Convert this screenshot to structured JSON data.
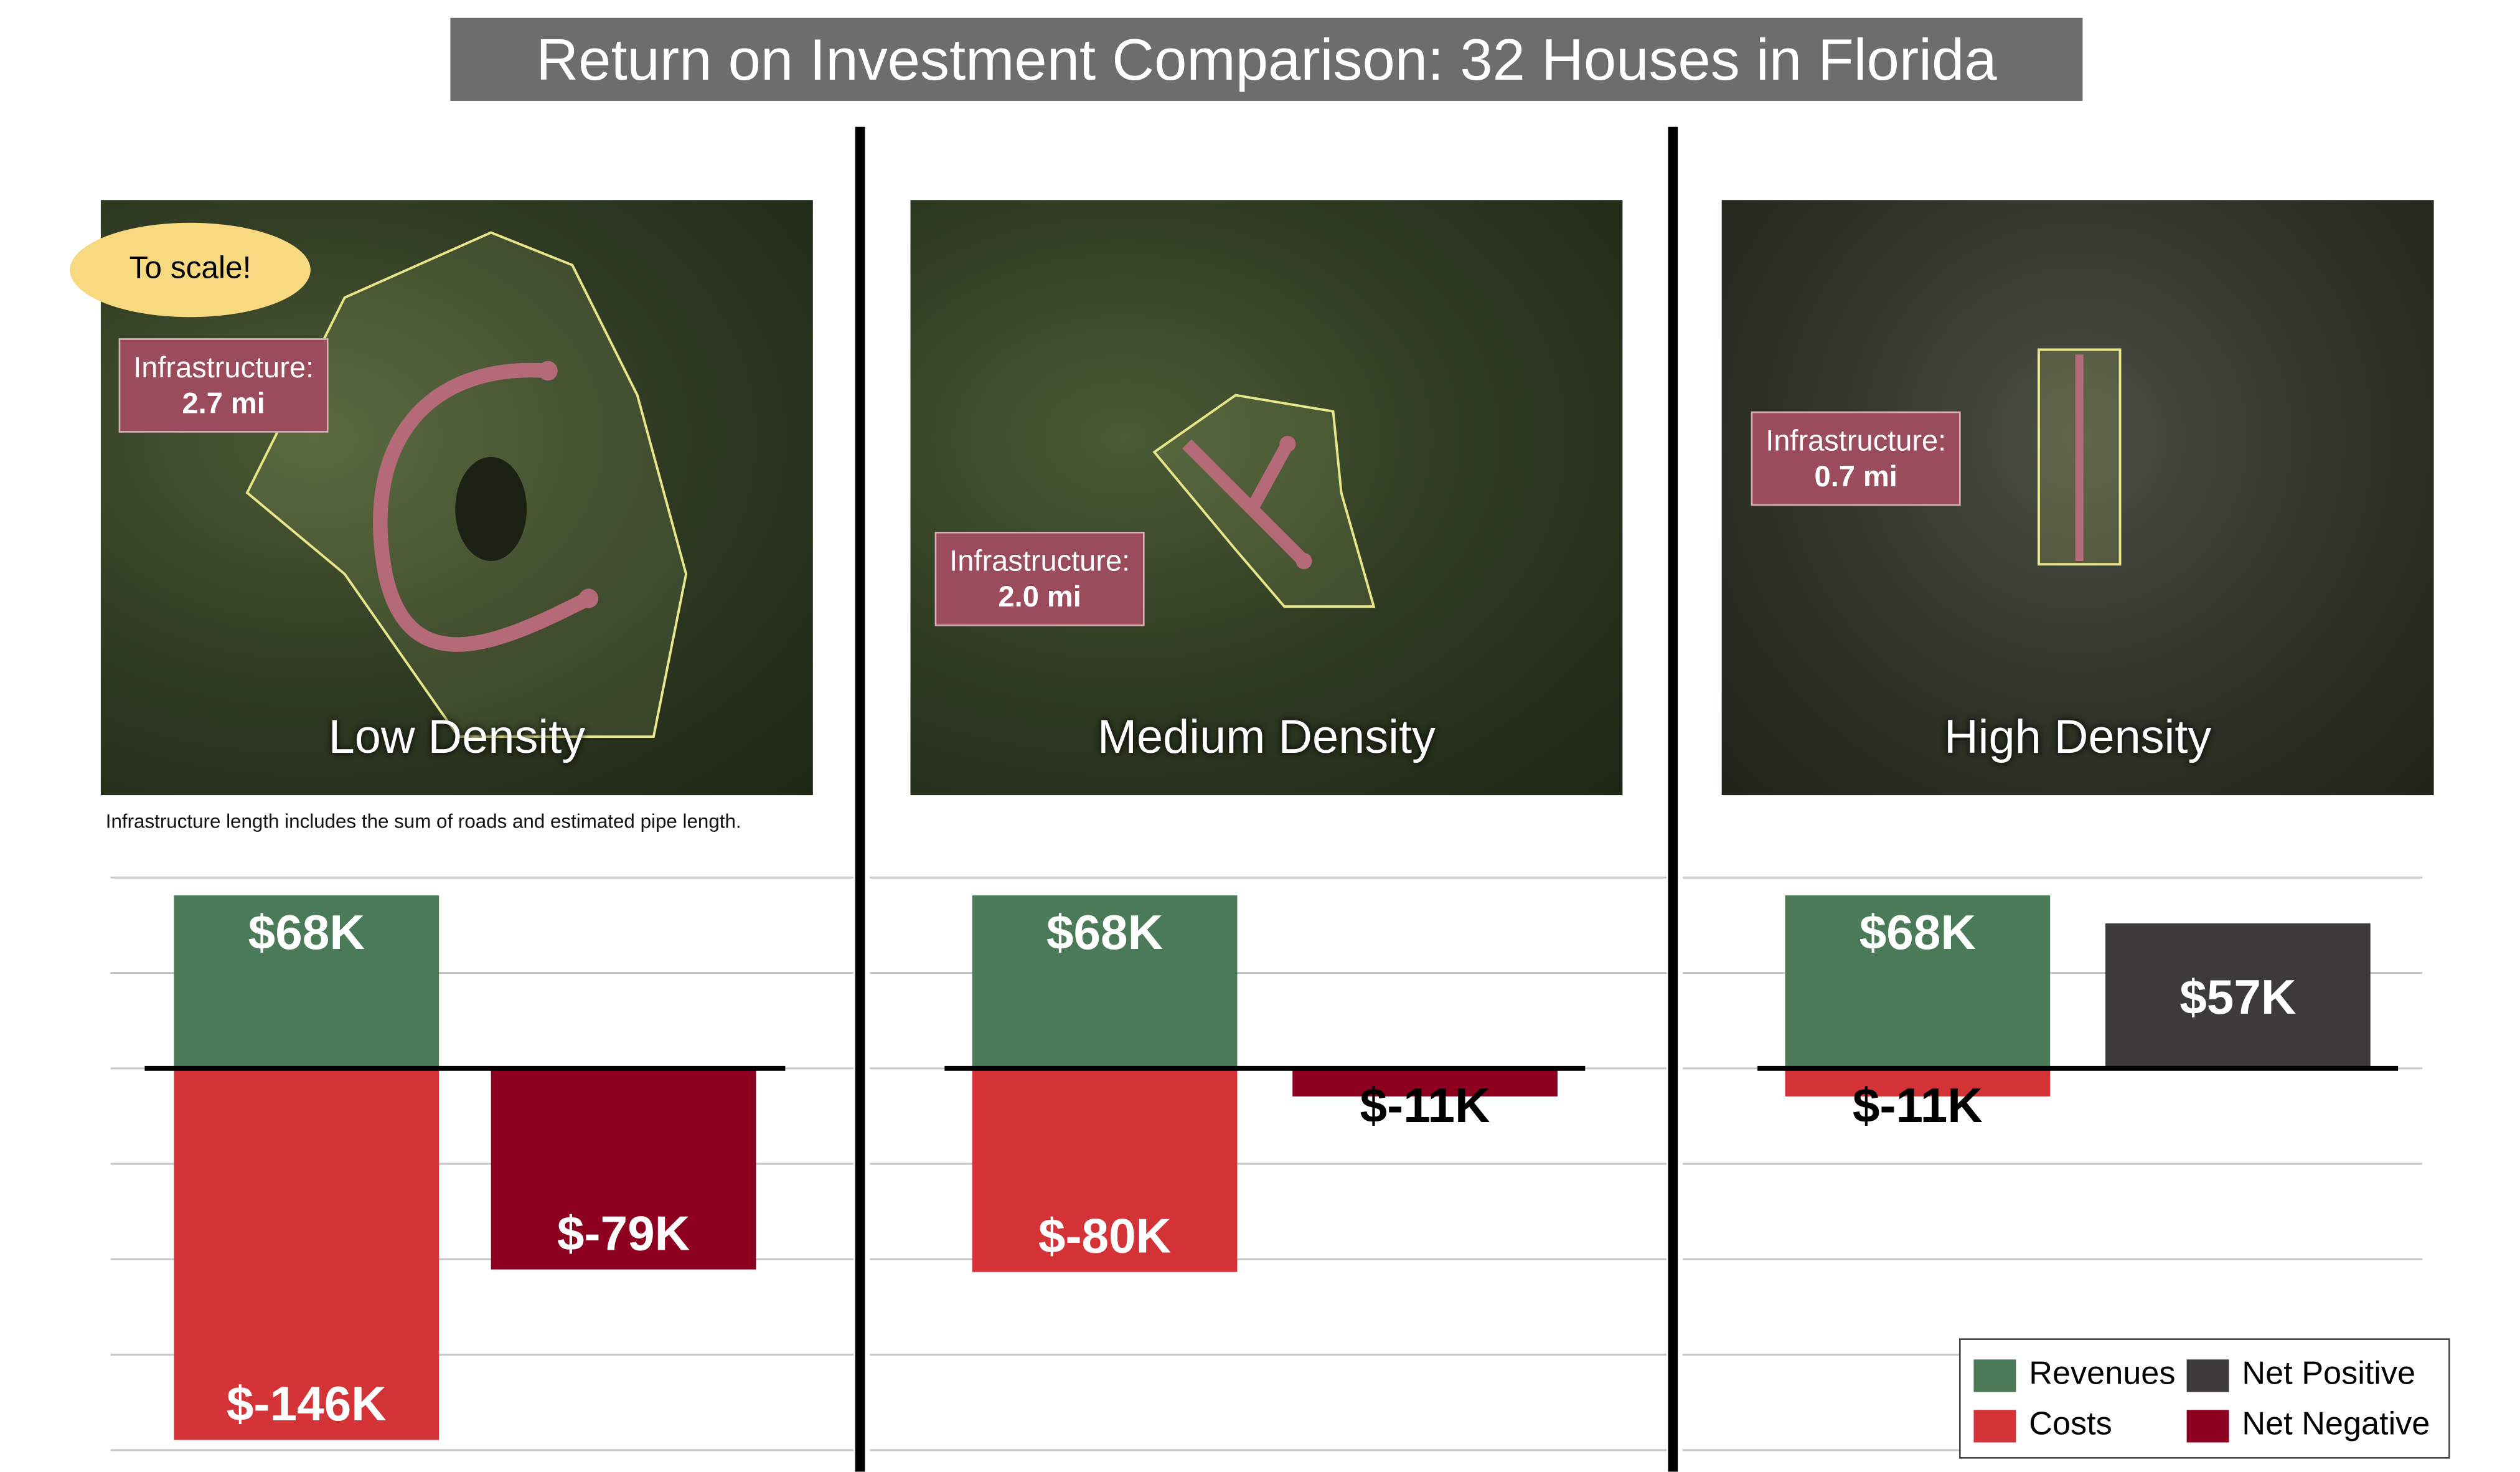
{
  "title": "Return on Investment Comparison: 32 Houses in Florida",
  "note": "To scale!",
  "caption": "Infrastructure length includes the sum of roads and estimated pipe length.",
  "panels": [
    {
      "label": "Low Density",
      "infra_label": "Infrastructure:",
      "infra_value": "2.7 mi"
    },
    {
      "label": "Medium Density",
      "infra_label": "Infrastructure:",
      "infra_value": "2.0 mi"
    },
    {
      "label": "High Density",
      "infra_label": "Infrastructure:",
      "infra_value": "0.7 mi"
    }
  ],
  "colors": {
    "revenues": "#4a7a57",
    "costs": "#d33237",
    "net_positive": "#3d3a3a",
    "net_negative": "#8e0020"
  },
  "chart_data": [
    {
      "type": "bar",
      "title": "Low Density",
      "unit": "$K",
      "ylim": [
        -150,
        75
      ],
      "grid": true,
      "revenues": 68,
      "costs": -146,
      "net": -79,
      "labels": {
        "revenues": "$68K",
        "costs": "$-146K",
        "net": "$-79K"
      }
    },
    {
      "type": "bar",
      "title": "Medium Density",
      "unit": "$K",
      "ylim": [
        -150,
        75
      ],
      "grid": true,
      "revenues": 68,
      "costs": -80,
      "net": -11,
      "labels": {
        "revenues": "$68K",
        "costs": "$-80K",
        "net": "$-11K"
      }
    },
    {
      "type": "bar",
      "title": "High Density",
      "unit": "$K",
      "ylim": [
        -150,
        75
      ],
      "grid": true,
      "revenues": 68,
      "costs": -11,
      "net": 57,
      "labels": {
        "revenues": "$68K",
        "costs": "$-11K",
        "net": "$57K"
      }
    }
  ],
  "legend": {
    "position": "bottom-right",
    "items": [
      {
        "label": "Revenues",
        "color": "#4a7a57"
      },
      {
        "label": "Net Positive",
        "color": "#3d3a3a"
      },
      {
        "label": "Costs",
        "color": "#d33237"
      },
      {
        "label": "Net Negative",
        "color": "#8e0020"
      }
    ]
  }
}
